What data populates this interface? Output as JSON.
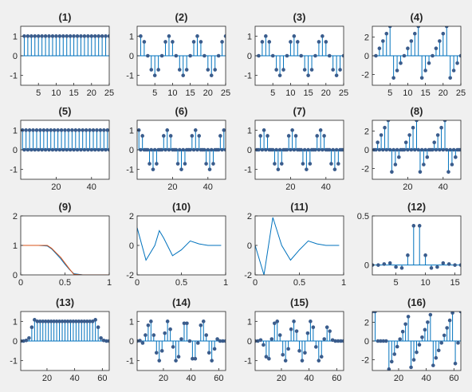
{
  "figure": {
    "background": "#f0f0f0",
    "plot_background": "#ffffff",
    "stem_color": "#0072bd",
    "marker_color": "#3a5c8c",
    "line_color": "#0072bd",
    "line2_color": "#d95319"
  },
  "chart_data": [
    {
      "type": "stem",
      "title": "(1)",
      "xlim": [
        0,
        25
      ],
      "ylim": [
        -1.5,
        1.5
      ],
      "xticks": [
        5,
        10,
        15,
        20,
        25
      ],
      "yticks": [
        -1,
        0,
        1
      ],
      "x": [
        1,
        2,
        3,
        4,
        5,
        6,
        7,
        8,
        9,
        10,
        11,
        12,
        13,
        14,
        15,
        16,
        17,
        18,
        19,
        20,
        21,
        22,
        23,
        24,
        25
      ],
      "y": [
        1,
        1,
        1,
        1,
        1,
        1,
        1,
        1,
        1,
        1,
        1,
        1,
        1,
        1,
        1,
        1,
        1,
        1,
        1,
        1,
        1,
        1,
        1,
        1,
        1
      ]
    },
    {
      "type": "stem",
      "title": "(2)",
      "xlim": [
        0,
        25
      ],
      "ylim": [
        -1.5,
        1.5
      ],
      "xticks": [
        5,
        10,
        15,
        20,
        25
      ],
      "yticks": [
        -1,
        0,
        1
      ],
      "x": [
        1,
        2,
        3,
        4,
        5,
        6,
        7,
        8,
        9,
        10,
        11,
        12,
        13,
        14,
        15,
        16,
        17,
        18,
        19,
        20,
        21,
        22,
        23,
        24,
        25
      ],
      "y": [
        1,
        0.71,
        0,
        -0.71,
        -1,
        -0.71,
        0,
        0.71,
        1,
        0.71,
        0,
        -0.71,
        -1,
        -0.71,
        0,
        0.71,
        1,
        0.71,
        0,
        -0.71,
        -1,
        -0.71,
        0,
        0.71,
        1
      ]
    },
    {
      "type": "stem",
      "title": "(3)",
      "xlim": [
        0,
        25
      ],
      "ylim": [
        -1.5,
        1.5
      ],
      "xticks": [
        5,
        10,
        15,
        20,
        25
      ],
      "yticks": [
        -1,
        0,
        1
      ],
      "x": [
        1,
        2,
        3,
        4,
        5,
        6,
        7,
        8,
        9,
        10,
        11,
        12,
        13,
        14,
        15,
        16,
        17,
        18,
        19,
        20,
        21,
        22,
        23,
        24,
        25
      ],
      "y": [
        0,
        0.71,
        1,
        0.71,
        0,
        -0.71,
        -1,
        -0.71,
        0,
        0.71,
        1,
        0.71,
        0,
        -0.71,
        -1,
        -0.71,
        0,
        0.71,
        1,
        0.71,
        0,
        -0.71,
        -1,
        -0.71,
        0
      ]
    },
    {
      "type": "stem",
      "title": "(4)",
      "xlim": [
        0,
        25
      ],
      "ylim": [
        -3.14,
        3.14
      ],
      "xticks": [
        5,
        10,
        15,
        20,
        25
      ],
      "yticks": [
        -2,
        0,
        2
      ],
      "x": [
        1,
        2,
        3,
        4,
        5,
        6,
        7,
        8,
        9,
        10,
        11,
        12,
        13,
        14,
        15,
        16,
        17,
        18,
        19,
        20,
        21,
        22,
        23,
        24,
        25
      ],
      "y": [
        0,
        0.79,
        1.57,
        2.36,
        3.14,
        -2.36,
        -1.57,
        -0.79,
        0,
        0.79,
        1.57,
        2.36,
        3.14,
        -2.36,
        -1.57,
        -0.79,
        0,
        0.79,
        1.57,
        2.36,
        3.14,
        -2.36,
        -1.57,
        -0.79,
        0
      ]
    },
    {
      "type": "stem",
      "title": "(5)",
      "xlim": [
        0,
        50
      ],
      "ylim": [
        -1.5,
        1.5
      ],
      "xticks": [
        20,
        40
      ],
      "yticks": [
        -1,
        0,
        1
      ],
      "x": [
        1,
        2,
        3,
        4,
        5,
        6,
        7,
        8,
        9,
        10,
        11,
        12,
        13,
        14,
        15,
        16,
        17,
        18,
        19,
        20,
        21,
        22,
        23,
        24,
        25,
        26,
        27,
        28,
        29,
        30,
        31,
        32,
        33,
        34,
        35,
        36,
        37,
        38,
        39,
        40,
        41,
        42,
        43,
        44,
        45,
        46,
        47,
        48,
        49,
        50
      ],
      "y": [
        1,
        0,
        1,
        0,
        1,
        0,
        1,
        0,
        1,
        0,
        1,
        0,
        1,
        0,
        1,
        0,
        1,
        0,
        1,
        0,
        1,
        0,
        1,
        0,
        1,
        0,
        1,
        0,
        1,
        0,
        1,
        0,
        1,
        0,
        1,
        0,
        1,
        0,
        1,
        0,
        1,
        0,
        1,
        0,
        1,
        0,
        1,
        0,
        1,
        0
      ]
    },
    {
      "type": "stem",
      "title": "(6)",
      "xlim": [
        0,
        50
      ],
      "ylim": [
        -1.5,
        1.5
      ],
      "xticks": [
        20,
        40
      ],
      "yticks": [
        -1,
        0,
        1
      ],
      "x": [
        1,
        2,
        3,
        4,
        5,
        6,
        7,
        8,
        9,
        10,
        11,
        12,
        13,
        14,
        15,
        16,
        17,
        18,
        19,
        20,
        21,
        22,
        23,
        24,
        25,
        26,
        27,
        28,
        29,
        30,
        31,
        32,
        33,
        34,
        35,
        36,
        37,
        38,
        39,
        40,
        41,
        42,
        43,
        44,
        45,
        46,
        47,
        48,
        49,
        50
      ],
      "y": [
        1,
        0,
        0.71,
        0,
        0,
        0,
        -0.71,
        0,
        -1,
        0,
        -0.71,
        0,
        0,
        0,
        0.71,
        0,
        1,
        0,
        0.71,
        0,
        0,
        0,
        -0.71,
        0,
        -1,
        0,
        -0.71,
        0,
        0,
        0,
        0.71,
        0,
        1,
        0,
        0.71,
        0,
        0,
        0,
        -0.71,
        0,
        -1,
        0,
        -0.71,
        0,
        0,
        0,
        0.71,
        0,
        1,
        0
      ]
    },
    {
      "type": "stem",
      "title": "(7)",
      "xlim": [
        0,
        50
      ],
      "ylim": [
        -1.5,
        1.5
      ],
      "xticks": [
        20,
        40
      ],
      "yticks": [
        -1,
        0,
        1
      ],
      "x": [
        1,
        2,
        3,
        4,
        5,
        6,
        7,
        8,
        9,
        10,
        11,
        12,
        13,
        14,
        15,
        16,
        17,
        18,
        19,
        20,
        21,
        22,
        23,
        24,
        25,
        26,
        27,
        28,
        29,
        30,
        31,
        32,
        33,
        34,
        35,
        36,
        37,
        38,
        39,
        40,
        41,
        42,
        43,
        44,
        45,
        46,
        47,
        48,
        49,
        50
      ],
      "y": [
        0,
        0,
        0.71,
        0,
        1,
        0,
        0.71,
        0,
        0,
        0,
        -0.71,
        0,
        -1,
        0,
        -0.71,
        0,
        0,
        0,
        0.71,
        0,
        1,
        0,
        0.71,
        0,
        0,
        0,
        -0.71,
        0,
        -1,
        0,
        -0.71,
        0,
        0,
        0,
        0.71,
        0,
        1,
        0,
        0.71,
        0,
        0,
        0,
        -0.71,
        0,
        -1,
        0,
        -0.71,
        0,
        0,
        0
      ]
    },
    {
      "type": "stem",
      "title": "(8)",
      "xlim": [
        0,
        50
      ],
      "ylim": [
        -3.14,
        3.14
      ],
      "xticks": [
        20,
        40
      ],
      "yticks": [
        -2,
        0,
        2
      ],
      "x": [
        1,
        2,
        3,
        4,
        5,
        6,
        7,
        8,
        9,
        10,
        11,
        12,
        13,
        14,
        15,
        16,
        17,
        18,
        19,
        20,
        21,
        22,
        23,
        24,
        25,
        26,
        27,
        28,
        29,
        30,
        31,
        32,
        33,
        34,
        35,
        36,
        37,
        38,
        39,
        40,
        41,
        42,
        43,
        44,
        45,
        46,
        47,
        48,
        49,
        50
      ],
      "y": [
        0,
        0,
        0.79,
        0,
        1.57,
        0,
        2.36,
        0,
        3.14,
        0,
        -2.36,
        0,
        -1.57,
        0,
        -0.79,
        0,
        0,
        0,
        0.79,
        0,
        1.57,
        0,
        2.36,
        0,
        3.14,
        0,
        -2.36,
        0,
        -1.57,
        0,
        -0.79,
        0,
        0,
        0,
        0.79,
        0,
        1.57,
        0,
        2.36,
        0,
        3.14,
        0,
        -2.36,
        0,
        -1.57,
        0,
        -0.79,
        0,
        0,
        0
      ]
    },
    {
      "type": "line",
      "title": "(9)",
      "xlim": [
        0,
        1
      ],
      "ylim": [
        0,
        2
      ],
      "xticks": [
        0,
        0.5,
        1
      ],
      "yticks": [
        0,
        1,
        2
      ],
      "series": [
        {
          "x": [
            0,
            0.1,
            0.2,
            0.3,
            0.35,
            0.4,
            0.45,
            0.5,
            0.55,
            0.6,
            0.7,
            0.8,
            0.9,
            1
          ],
          "y": [
            1,
            1,
            1,
            0.98,
            0.88,
            0.72,
            0.55,
            0.36,
            0.18,
            0.04,
            0,
            0,
            0,
            0
          ]
        },
        {
          "x": [
            0,
            0.1,
            0.2,
            0.3,
            0.35,
            0.4,
            0.45,
            0.5,
            0.55,
            0.6,
            0.7,
            0.8,
            0.9,
            1
          ],
          "y": [
            1,
            1,
            1,
            1,
            0.9,
            0.75,
            0.6,
            0.4,
            0.2,
            0.02,
            0,
            0,
            0,
            0
          ]
        }
      ]
    },
    {
      "type": "line",
      "title": "(10)",
      "xlim": [
        0,
        1
      ],
      "ylim": [
        -2,
        2
      ],
      "xticks": [
        0,
        0.5,
        1
      ],
      "yticks": [
        -2,
        0,
        2
      ],
      "series": [
        {
          "x": [
            0,
            0.1,
            0.2,
            0.25,
            0.3,
            0.4,
            0.5,
            0.6,
            0.7,
            0.8,
            0.9,
            0.95
          ],
          "y": [
            1.2,
            -1,
            0,
            1,
            0.5,
            -0.7,
            -0.3,
            0.3,
            0.1,
            0,
            0,
            0
          ]
        }
      ]
    },
    {
      "type": "line",
      "title": "(11)",
      "xlim": [
        0,
        1
      ],
      "ylim": [
        -2,
        2
      ],
      "xticks": [
        0,
        0.5,
        1
      ],
      "yticks": [
        -2,
        0,
        2
      ],
      "series": [
        {
          "x": [
            0,
            0.1,
            0.2,
            0.3,
            0.4,
            0.5,
            0.6,
            0.7,
            0.8,
            0.9,
            0.95
          ],
          "y": [
            0,
            -2,
            1.9,
            0,
            -1,
            -0.3,
            0.3,
            0.1,
            0,
            0,
            0
          ]
        }
      ]
    },
    {
      "type": "stem",
      "title": "(12)",
      "xlim": [
        1,
        16
      ],
      "ylim": [
        -0.1,
        0.5
      ],
      "xticks": [
        5,
        10,
        15
      ],
      "yticks": [
        0,
        0.5
      ],
      "x": [
        1,
        2,
        3,
        4,
        5,
        6,
        7,
        8,
        9,
        10,
        11,
        12,
        13,
        14,
        15,
        16
      ],
      "y": [
        0,
        0,
        0.01,
        0.02,
        -0.02,
        -0.03,
        0.1,
        0.4,
        0.4,
        0.1,
        -0.03,
        -0.02,
        0.02,
        0.01,
        0,
        0
      ]
    },
    {
      "type": "stem",
      "title": "(13)",
      "xlim": [
        1,
        65
      ],
      "ylim": [
        -1.5,
        1.5
      ],
      "xticks": [
        20,
        40,
        60
      ],
      "yticks": [
        -1,
        0,
        1
      ],
      "x": [
        1,
        3,
        5,
        7,
        9,
        11,
        13,
        15,
        17,
        19,
        21,
        23,
        25,
        27,
        29,
        31,
        33,
        35,
        37,
        39,
        41,
        43,
        45,
        47,
        49,
        51,
        53,
        55,
        57,
        59,
        61,
        63,
        65
      ],
      "y": [
        0,
        0,
        0.03,
        0.15,
        0.7,
        1.08,
        1,
        1,
        1,
        1,
        1,
        1,
        1,
        1,
        1,
        1,
        1,
        1,
        1,
        1,
        1,
        1,
        1,
        1,
        1,
        1,
        1,
        1.08,
        0.7,
        0.15,
        0.03,
        0,
        0
      ]
    },
    {
      "type": "stem",
      "title": "(14)",
      "xlim": [
        1,
        65
      ],
      "ylim": [
        -1.5,
        1.5
      ],
      "xticks": [
        20,
        40,
        60
      ],
      "yticks": [
        -1,
        0,
        1
      ],
      "x": [
        1,
        3,
        5,
        7,
        9,
        11,
        13,
        15,
        17,
        19,
        21,
        23,
        25,
        27,
        29,
        31,
        33,
        35,
        37,
        39,
        41,
        43,
        45,
        47,
        49,
        51,
        53,
        55,
        57,
        59,
        61,
        63,
        65
      ],
      "y": [
        0,
        0.02,
        -0.1,
        0.3,
        0.8,
        1,
        0.3,
        -0.6,
        -1,
        -0.5,
        0.4,
        1,
        0.6,
        -0.3,
        -1,
        -0.8,
        0.1,
        0.9,
        0.9,
        0,
        -0.9,
        -0.9,
        -0.1,
        0.8,
        1,
        0.3,
        -0.6,
        -1,
        -0.4,
        0.1,
        0,
        0,
        0
      ]
    },
    {
      "type": "stem",
      "title": "(15)",
      "xlim": [
        1,
        65
      ],
      "ylim": [
        -1.5,
        1.5
      ],
      "xticks": [
        20,
        40,
        60
      ],
      "yticks": [
        -1,
        0,
        1
      ],
      "x": [
        1,
        3,
        5,
        7,
        9,
        11,
        13,
        15,
        17,
        19,
        21,
        23,
        25,
        27,
        29,
        31,
        33,
        35,
        37,
        39,
        41,
        43,
        45,
        47,
        49,
        51,
        53,
        55,
        57,
        59,
        61,
        63,
        65
      ],
      "y": [
        0,
        0,
        0.05,
        -0.2,
        -0.8,
        -0.9,
        0.1,
        0.9,
        1,
        0.3,
        -0.7,
        -1,
        -0.4,
        0.6,
        1,
        0.5,
        -0.5,
        -1,
        -0.6,
        0.4,
        1,
        0.7,
        -0.3,
        -1,
        -0.8,
        0.1,
        0.7,
        0.5,
        0.05,
        0,
        0,
        0,
        0
      ]
    },
    {
      "type": "stem",
      "title": "(16)",
      "xlim": [
        1,
        65
      ],
      "ylim": [
        -3.14,
        3.14
      ],
      "xticks": [
        20,
        40,
        60
      ],
      "yticks": [
        -2,
        0,
        2
      ],
      "x": [
        1,
        3,
        5,
        7,
        9,
        11,
        13,
        15,
        17,
        19,
        21,
        23,
        25,
        27,
        29,
        31,
        33,
        35,
        37,
        39,
        41,
        43,
        45,
        47,
        49,
        51,
        53,
        55,
        57,
        59,
        61,
        63,
        65
      ],
      "y": [
        3.14,
        3.14,
        0,
        0,
        0,
        0,
        -3,
        -2.2,
        -1.4,
        -0.6,
        0.2,
        1,
        1.8,
        2.6,
        -2.8,
        -2,
        -1.2,
        -0.4,
        0.4,
        1.2,
        2,
        2.8,
        -2.6,
        -1.8,
        -1,
        -0.2,
        0.6,
        1.4,
        2.2,
        3,
        -2.4,
        -0.2,
        3.14
      ]
    }
  ]
}
